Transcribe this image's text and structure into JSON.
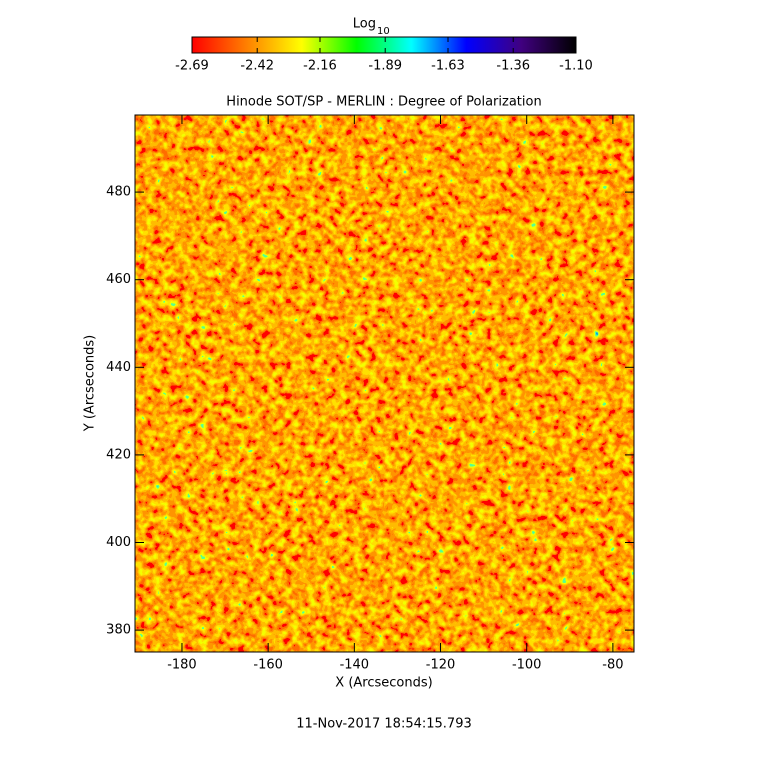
{
  "chart_data": {
    "type": "heatmap",
    "title": "Hinode SOT/SP - MERLIN : Degree of Polarization",
    "x_label": "X (Arcseconds)",
    "y_label": "Y (Arcseconds)",
    "timestamp": "11-Nov-2017 18:54:15.793",
    "colorbar_label": "Log",
    "colorbar_label_sub": "10",
    "colorbar_lim": [
      -2.69,
      -1.1
    ],
    "colorbar_ticks": [
      -2.69,
      -2.42,
      -2.16,
      -1.89,
      -1.63,
      -1.36,
      {
        "value": -1.1,
        "label": "-1.10"
      }
    ],
    "colormap": [
      "#ff0000",
      "#ff8000",
      "#ffff00",
      "#00ff00",
      "#00ffff",
      "#0000ff",
      "#400080",
      "#000000"
    ],
    "xlim": [
      -190.9,
      -75.1
    ],
    "ylim": [
      375.0,
      497.6
    ],
    "xticks": [
      -180,
      -160,
      -140,
      -120,
      -100,
      -80
    ],
    "yticks": [
      380,
      400,
      420,
      440,
      460,
      480
    ]
  }
}
